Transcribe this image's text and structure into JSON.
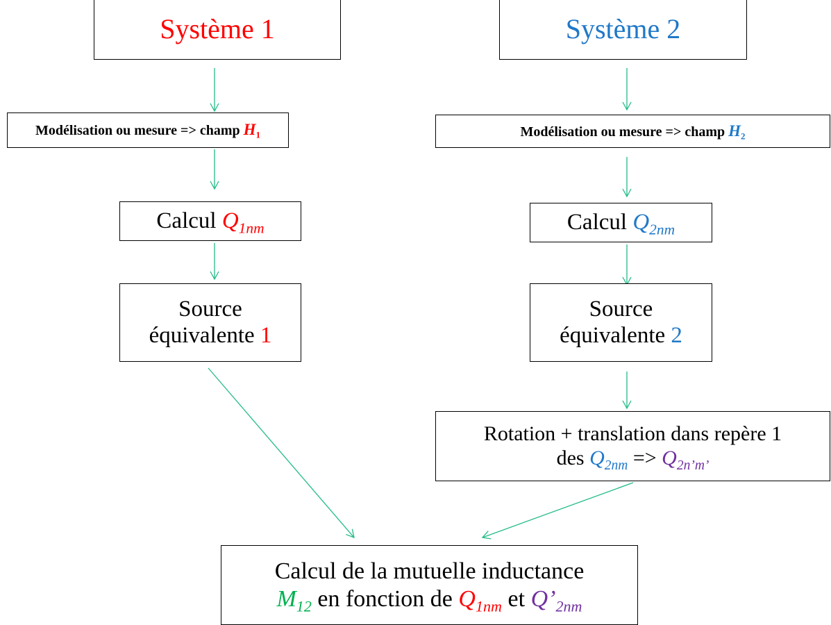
{
  "nodes": [
    {
      "lines": [
        [
          "Système 1"
        ]
      ]
    },
    {
      "lines": [
        [
          "Système 2"
        ]
      ]
    },
    {
      "lines": [
        [
          "Modélisation ou mesure => champ ",
          "H",
          "1"
        ]
      ]
    },
    {
      "lines": [
        [
          "Modélisation ou mesure => champ ",
          "H",
          "2"
        ]
      ]
    },
    {
      "lines": [
        [
          "Calcul ",
          "Q",
          "1nm"
        ]
      ]
    },
    {
      "lines": [
        [
          "Calcul ",
          "Q",
          "2nm"
        ]
      ]
    },
    {
      "lines": [
        [
          "Source"
        ],
        [
          "équivalente ",
          "1"
        ]
      ]
    },
    {
      "lines": [
        [
          "Source"
        ],
        [
          "équivalente ",
          "2"
        ]
      ]
    },
    {
      "lines": [
        [
          "Rotation + translation dans repère 1"
        ],
        [
          "des ",
          "Q",
          "2nm",
          " => ",
          "Q",
          "2n’m’"
        ]
      ]
    },
    {
      "lines": [
        [
          "Calcul de la mutuelle inductance"
        ],
        [
          "M",
          "12",
          " en fonction de ",
          "Q",
          "1nm",
          " et ",
          "Q’",
          "2nm"
        ]
      ]
    }
  ]
}
